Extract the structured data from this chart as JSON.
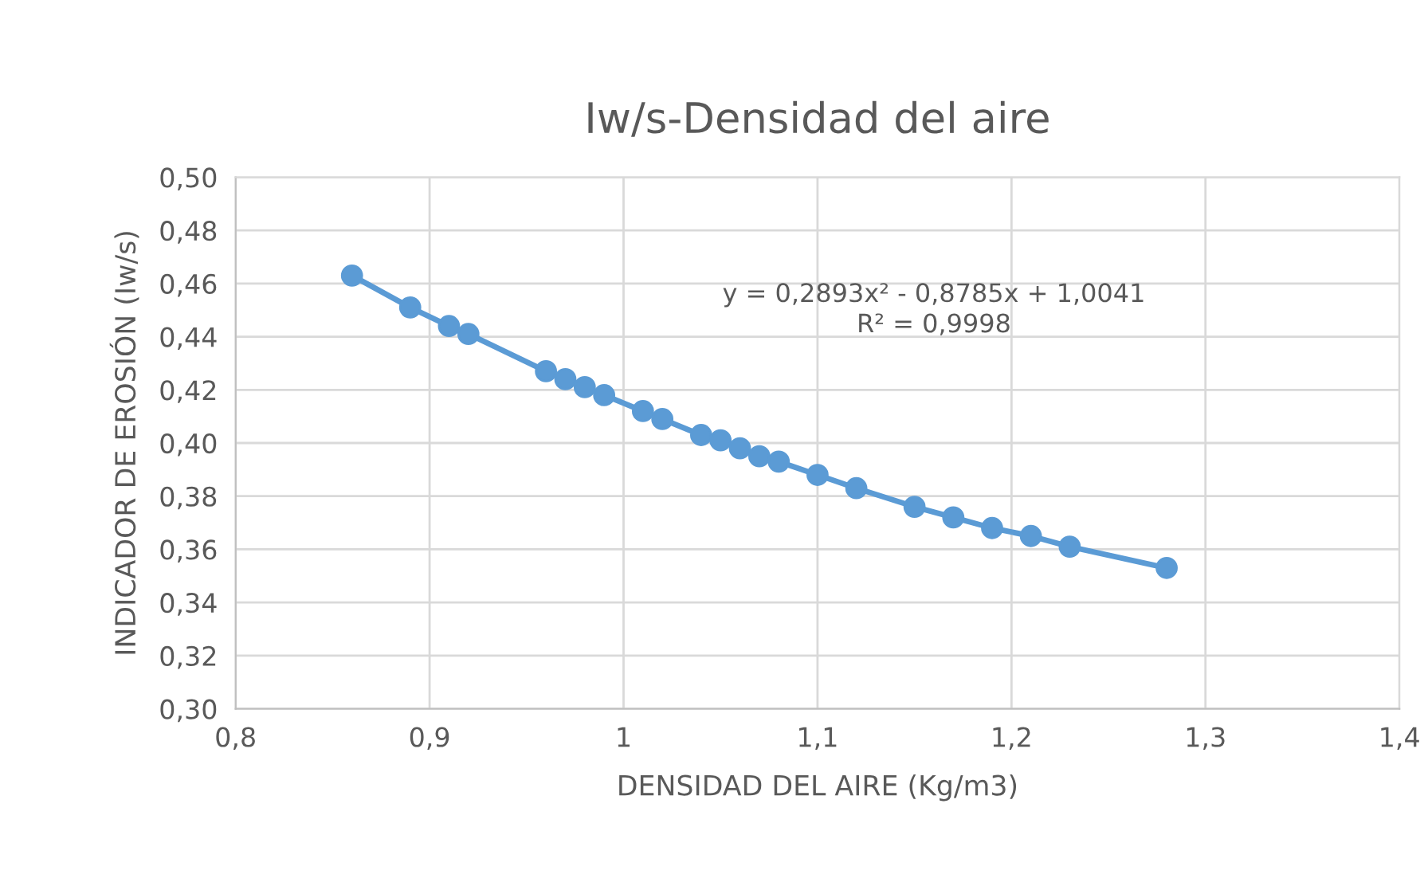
{
  "chart_data": {
    "type": "line",
    "title": "Iw/s-Densidad del aire",
    "xlabel": "DENSIDAD DEL AIRE (Kg/m3)",
    "ylabel": "INDICADOR DE EROSIÓN (Iw/s)",
    "series": [
      {
        "color": "#5b9bd5",
        "x": [
          0.86,
          0.89,
          0.91,
          0.92,
          0.96,
          0.97,
          0.98,
          0.99,
          1.01,
          1.02,
          1.04,
          1.05,
          1.06,
          1.07,
          1.08,
          1.1,
          1.12,
          1.15,
          1.17,
          1.19,
          1.21,
          1.23,
          1.28
        ],
        "values": [
          0.463,
          0.451,
          0.444,
          0.441,
          0.427,
          0.424,
          0.421,
          0.418,
          0.412,
          0.409,
          0.403,
          0.401,
          0.398,
          0.395,
          0.393,
          0.388,
          0.383,
          0.376,
          0.372,
          0.368,
          0.365,
          0.361,
          0.353
        ]
      }
    ],
    "marker": "circle",
    "line_style": "solid",
    "grid": true,
    "xlim": [
      0.8,
      1.4
    ],
    "xticks": [
      {
        "value": 0.8,
        "label": "0,8"
      },
      {
        "value": 0.9,
        "label": "0,9"
      },
      {
        "value": 1.0,
        "label": "1"
      },
      {
        "value": 1.1,
        "label": "1,1"
      },
      {
        "value": 1.2,
        "label": "1,2"
      },
      {
        "value": 1.3,
        "label": "1,3"
      },
      {
        "value": 1.4,
        "label": "1,4"
      }
    ],
    "ylim": [
      0.3,
      0.5
    ],
    "yticks": [
      {
        "value": 0.3,
        "label": "0,30"
      },
      {
        "value": 0.32,
        "label": "0,32"
      },
      {
        "value": 0.34,
        "label": "0,34"
      },
      {
        "value": 0.36,
        "label": "0,36"
      },
      {
        "value": 0.38,
        "label": "0,38"
      },
      {
        "value": 0.4,
        "label": "0,40"
      },
      {
        "value": 0.42,
        "label": "0,42"
      },
      {
        "value": 0.44,
        "label": "0,44"
      },
      {
        "value": 0.46,
        "label": "0,46"
      },
      {
        "value": 0.48,
        "label": "0,48"
      },
      {
        "value": 0.5,
        "label": "0,50"
      }
    ],
    "annotations": [
      "y = 0,2893x² - 0,8785x + 1,0041\nR² = 0,9998"
    ]
  }
}
